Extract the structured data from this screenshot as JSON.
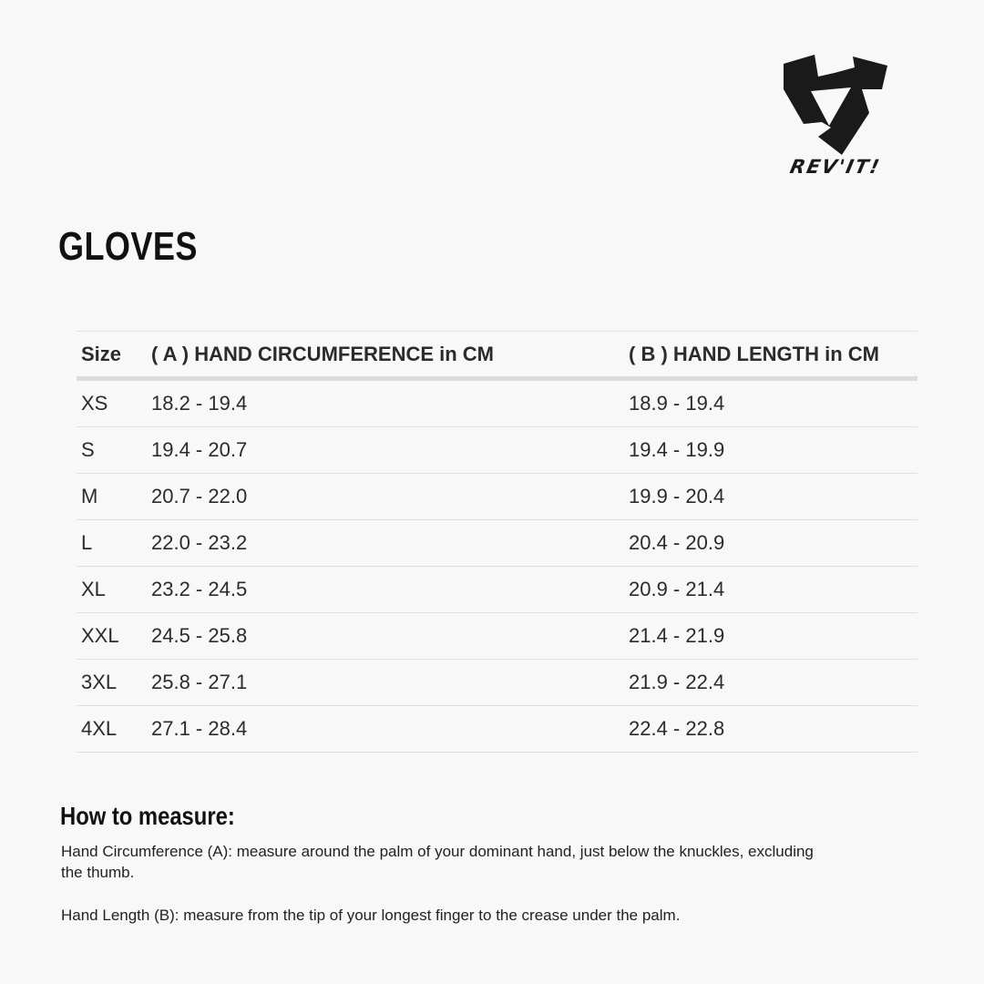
{
  "brand": {
    "name": "REV'IT!",
    "logo_icon": "revit-shield-logo"
  },
  "title": "GLOVES",
  "table": {
    "headers": [
      "Size",
      "( A ) HAND CIRCUMFERENCE in CM",
      "( B ) HAND LENGTH in CM"
    ],
    "rows": [
      [
        "XS",
        "18.2 - 19.4",
        "18.9 - 19.4"
      ],
      [
        "S",
        "19.4 - 20.7",
        "19.4 - 19.9"
      ],
      [
        "M",
        "20.7 - 22.0",
        "19.9 - 20.4"
      ],
      [
        "L",
        "22.0 - 23.2",
        "20.4 - 20.9"
      ],
      [
        "XL",
        "23.2 - 24.5",
        "20.9 - 21.4"
      ],
      [
        "XXL",
        "24.5 - 25.8",
        "21.4 - 21.9"
      ],
      [
        "3XL",
        "25.8 - 27.1",
        "21.9 - 22.4"
      ],
      [
        "4XL",
        "27.1 - 28.4",
        "22.4 - 22.8"
      ]
    ]
  },
  "how_to": {
    "heading": "How to measure:",
    "circumference": "Hand Circumference (A): measure around the palm of your dominant hand, just below the knuckles, excluding the thumb.",
    "length": "Hand Length (B): measure from the tip of your longest finger to the crease under the palm."
  }
}
